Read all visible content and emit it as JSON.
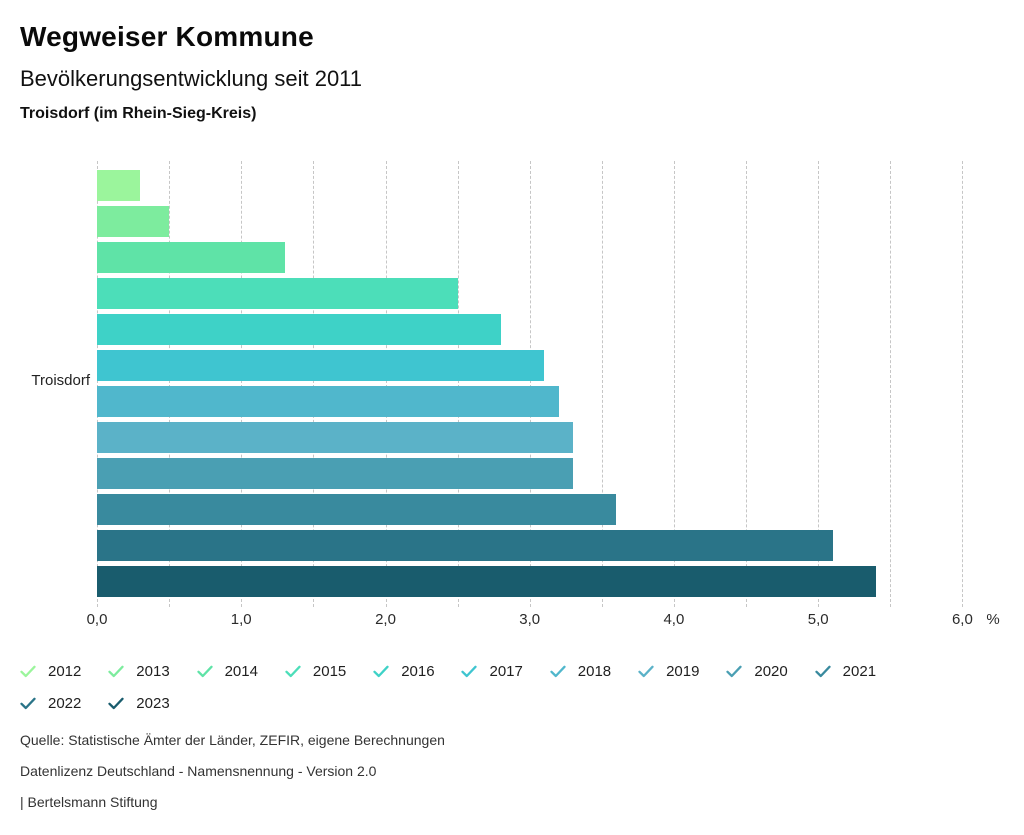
{
  "header": {
    "title": "Wegweiser Kommune",
    "subtitle": "Bevölkerungsentwicklung seit 2011",
    "region": "Troisdorf (im Rhein-Sieg-Kreis)"
  },
  "chart_data": {
    "type": "bar",
    "orientation": "horizontal",
    "title": "Bevölkerungsentwicklung seit 2011",
    "region": "Troisdorf (im Rhein-Sieg-Kreis)",
    "category_axis_label": "Troisdorf",
    "unit": "%",
    "xlim": [
      0,
      6.33
    ],
    "grid": {
      "step": 0.5,
      "max": 6,
      "style": "dashed"
    },
    "x_ticks": [
      {
        "value": 0,
        "label": "0,0"
      },
      {
        "value": 1,
        "label": "1,0"
      },
      {
        "value": 2,
        "label": "2,0"
      },
      {
        "value": 3,
        "label": "3,0"
      },
      {
        "value": 4,
        "label": "4,0"
      },
      {
        "value": 5,
        "label": "5,0"
      },
      {
        "value": 6,
        "label": "6,0"
      }
    ],
    "series": [
      {
        "year": "2012",
        "value": 0.3,
        "color": "#9bf59c"
      },
      {
        "year": "2013",
        "value": 0.5,
        "color": "#7dec9e"
      },
      {
        "year": "2014",
        "value": 1.3,
        "color": "#5fe3a7"
      },
      {
        "year": "2015",
        "value": 2.5,
        "color": "#4cdeb9"
      },
      {
        "year": "2016",
        "value": 2.8,
        "color": "#3ed2c7"
      },
      {
        "year": "2017",
        "value": 3.1,
        "color": "#3fc5d0"
      },
      {
        "year": "2018",
        "value": 3.2,
        "color": "#50b7cc"
      },
      {
        "year": "2019",
        "value": 3.3,
        "color": "#5bb2c8"
      },
      {
        "year": "2020",
        "value": 3.3,
        "color": "#4a9fb3"
      },
      {
        "year": "2021",
        "value": 3.6,
        "color": "#398a9e"
      },
      {
        "year": "2022",
        "value": 5.1,
        "color": "#2a7488"
      },
      {
        "year": "2023",
        "value": 5.4,
        "color": "#195c6d"
      }
    ],
    "legend": {
      "position": "bottom",
      "row_size": 10,
      "marker": "check"
    }
  },
  "footer": {
    "lines": [
      "Quelle: Statistische Ämter der Länder, ZEFIR, eigene Berechnungen",
      "Datenlizenz Deutschland - Namensnennung - Version 2.0",
      "| Bertelsmann Stiftung"
    ]
  }
}
